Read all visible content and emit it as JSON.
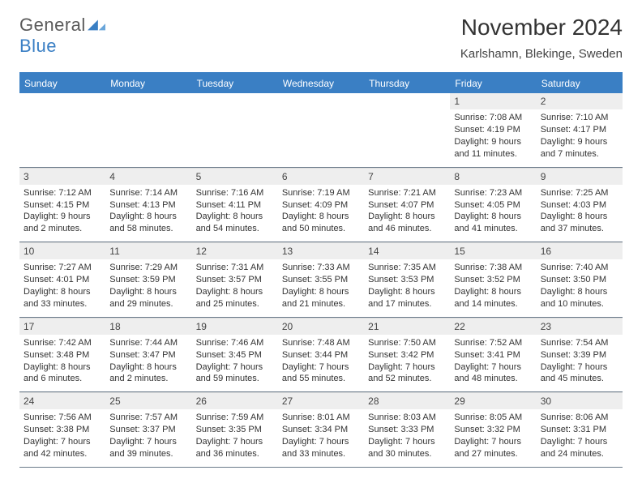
{
  "logo": {
    "text1": "General",
    "text2": "Blue"
  },
  "title": "November 2024",
  "location": "Karlshamn, Blekinge, Sweden",
  "colors": {
    "accent": "#3a7fc4",
    "header_text": "#ffffff",
    "grid_line": "#6a7a8a",
    "daynum_bg": "#eeeeee",
    "body_text": "#333333",
    "background": "#ffffff"
  },
  "typography": {
    "title_fontsize": 28,
    "location_fontsize": 15,
    "dayhead_fontsize": 12,
    "cell_fontsize": 11,
    "font_family": "Arial"
  },
  "calendar": {
    "day_names": [
      "Sunday",
      "Monday",
      "Tuesday",
      "Wednesday",
      "Thursday",
      "Friday",
      "Saturday"
    ],
    "weeks": [
      [
        null,
        null,
        null,
        null,
        null,
        {
          "n": "1",
          "sr": "Sunrise: 7:08 AM",
          "ss": "Sunset: 4:19 PM",
          "dl1": "Daylight: 9 hours",
          "dl2": "and 11 minutes."
        },
        {
          "n": "2",
          "sr": "Sunrise: 7:10 AM",
          "ss": "Sunset: 4:17 PM",
          "dl1": "Daylight: 9 hours",
          "dl2": "and 7 minutes."
        }
      ],
      [
        {
          "n": "3",
          "sr": "Sunrise: 7:12 AM",
          "ss": "Sunset: 4:15 PM",
          "dl1": "Daylight: 9 hours",
          "dl2": "and 2 minutes."
        },
        {
          "n": "4",
          "sr": "Sunrise: 7:14 AM",
          "ss": "Sunset: 4:13 PM",
          "dl1": "Daylight: 8 hours",
          "dl2": "and 58 minutes."
        },
        {
          "n": "5",
          "sr": "Sunrise: 7:16 AM",
          "ss": "Sunset: 4:11 PM",
          "dl1": "Daylight: 8 hours",
          "dl2": "and 54 minutes."
        },
        {
          "n": "6",
          "sr": "Sunrise: 7:19 AM",
          "ss": "Sunset: 4:09 PM",
          "dl1": "Daylight: 8 hours",
          "dl2": "and 50 minutes."
        },
        {
          "n": "7",
          "sr": "Sunrise: 7:21 AM",
          "ss": "Sunset: 4:07 PM",
          "dl1": "Daylight: 8 hours",
          "dl2": "and 46 minutes."
        },
        {
          "n": "8",
          "sr": "Sunrise: 7:23 AM",
          "ss": "Sunset: 4:05 PM",
          "dl1": "Daylight: 8 hours",
          "dl2": "and 41 minutes."
        },
        {
          "n": "9",
          "sr": "Sunrise: 7:25 AM",
          "ss": "Sunset: 4:03 PM",
          "dl1": "Daylight: 8 hours",
          "dl2": "and 37 minutes."
        }
      ],
      [
        {
          "n": "10",
          "sr": "Sunrise: 7:27 AM",
          "ss": "Sunset: 4:01 PM",
          "dl1": "Daylight: 8 hours",
          "dl2": "and 33 minutes."
        },
        {
          "n": "11",
          "sr": "Sunrise: 7:29 AM",
          "ss": "Sunset: 3:59 PM",
          "dl1": "Daylight: 8 hours",
          "dl2": "and 29 minutes."
        },
        {
          "n": "12",
          "sr": "Sunrise: 7:31 AM",
          "ss": "Sunset: 3:57 PM",
          "dl1": "Daylight: 8 hours",
          "dl2": "and 25 minutes."
        },
        {
          "n": "13",
          "sr": "Sunrise: 7:33 AM",
          "ss": "Sunset: 3:55 PM",
          "dl1": "Daylight: 8 hours",
          "dl2": "and 21 minutes."
        },
        {
          "n": "14",
          "sr": "Sunrise: 7:35 AM",
          "ss": "Sunset: 3:53 PM",
          "dl1": "Daylight: 8 hours",
          "dl2": "and 17 minutes."
        },
        {
          "n": "15",
          "sr": "Sunrise: 7:38 AM",
          "ss": "Sunset: 3:52 PM",
          "dl1": "Daylight: 8 hours",
          "dl2": "and 14 minutes."
        },
        {
          "n": "16",
          "sr": "Sunrise: 7:40 AM",
          "ss": "Sunset: 3:50 PM",
          "dl1": "Daylight: 8 hours",
          "dl2": "and 10 minutes."
        }
      ],
      [
        {
          "n": "17",
          "sr": "Sunrise: 7:42 AM",
          "ss": "Sunset: 3:48 PM",
          "dl1": "Daylight: 8 hours",
          "dl2": "and 6 minutes."
        },
        {
          "n": "18",
          "sr": "Sunrise: 7:44 AM",
          "ss": "Sunset: 3:47 PM",
          "dl1": "Daylight: 8 hours",
          "dl2": "and 2 minutes."
        },
        {
          "n": "19",
          "sr": "Sunrise: 7:46 AM",
          "ss": "Sunset: 3:45 PM",
          "dl1": "Daylight: 7 hours",
          "dl2": "and 59 minutes."
        },
        {
          "n": "20",
          "sr": "Sunrise: 7:48 AM",
          "ss": "Sunset: 3:44 PM",
          "dl1": "Daylight: 7 hours",
          "dl2": "and 55 minutes."
        },
        {
          "n": "21",
          "sr": "Sunrise: 7:50 AM",
          "ss": "Sunset: 3:42 PM",
          "dl1": "Daylight: 7 hours",
          "dl2": "and 52 minutes."
        },
        {
          "n": "22",
          "sr": "Sunrise: 7:52 AM",
          "ss": "Sunset: 3:41 PM",
          "dl1": "Daylight: 7 hours",
          "dl2": "and 48 minutes."
        },
        {
          "n": "23",
          "sr": "Sunrise: 7:54 AM",
          "ss": "Sunset: 3:39 PM",
          "dl1": "Daylight: 7 hours",
          "dl2": "and 45 minutes."
        }
      ],
      [
        {
          "n": "24",
          "sr": "Sunrise: 7:56 AM",
          "ss": "Sunset: 3:38 PM",
          "dl1": "Daylight: 7 hours",
          "dl2": "and 42 minutes."
        },
        {
          "n": "25",
          "sr": "Sunrise: 7:57 AM",
          "ss": "Sunset: 3:37 PM",
          "dl1": "Daylight: 7 hours",
          "dl2": "and 39 minutes."
        },
        {
          "n": "26",
          "sr": "Sunrise: 7:59 AM",
          "ss": "Sunset: 3:35 PM",
          "dl1": "Daylight: 7 hours",
          "dl2": "and 36 minutes."
        },
        {
          "n": "27",
          "sr": "Sunrise: 8:01 AM",
          "ss": "Sunset: 3:34 PM",
          "dl1": "Daylight: 7 hours",
          "dl2": "and 33 minutes."
        },
        {
          "n": "28",
          "sr": "Sunrise: 8:03 AM",
          "ss": "Sunset: 3:33 PM",
          "dl1": "Daylight: 7 hours",
          "dl2": "and 30 minutes."
        },
        {
          "n": "29",
          "sr": "Sunrise: 8:05 AM",
          "ss": "Sunset: 3:32 PM",
          "dl1": "Daylight: 7 hours",
          "dl2": "and 27 minutes."
        },
        {
          "n": "30",
          "sr": "Sunrise: 8:06 AM",
          "ss": "Sunset: 3:31 PM",
          "dl1": "Daylight: 7 hours",
          "dl2": "and 24 minutes."
        }
      ]
    ]
  }
}
